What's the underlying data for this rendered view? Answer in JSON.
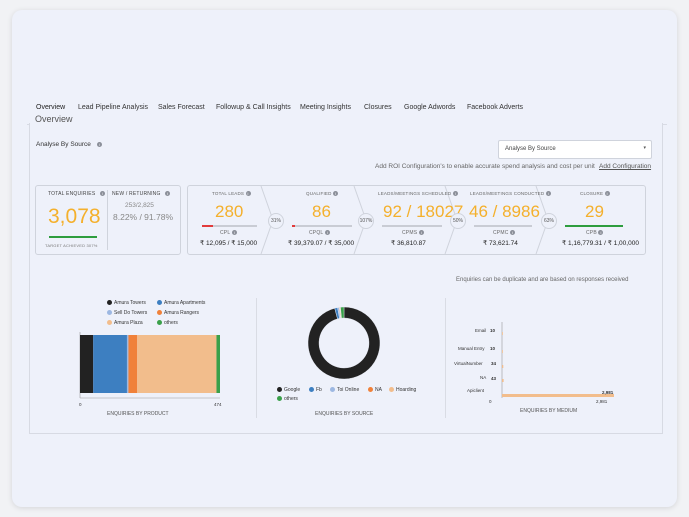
{
  "tabs": [
    {
      "label": "Overview"
    },
    {
      "label": "Lead Pipeline Analysis"
    },
    {
      "label": "Sales Forecast"
    },
    {
      "label": "Followup & Call Insights"
    },
    {
      "label": "Meeting Insights"
    },
    {
      "label": "Closures"
    },
    {
      "label": "Google Adwords"
    },
    {
      "label": "Facebook Adverts"
    }
  ],
  "section_title": "Overview",
  "analyse_label": "Analyse By Source",
  "select": {
    "value": "Analyse By Source"
  },
  "roi_text": "Add ROI Configuration's to enable accurate spend analysis and cost per unit",
  "roi_link": "Add Configuration",
  "enquiries": {
    "total_label": "TOTAL ENQUIRIES",
    "total_value": "3,078",
    "target_text": "TARGET ACHIEVED 307%",
    "new_returning_label": "NEW / RETURNING",
    "new_returning_value": "253/2,825",
    "new_returning_pct": "8.22% / 91.78%"
  },
  "funnel": [
    {
      "label": "TOTAL LEADS",
      "value": "280",
      "cost_label": "CPL",
      "cost_value": "₹ 12,095 / ₹ 15,000",
      "bar_color": "#e23b3b",
      "progress": 0.2
    },
    {
      "label": "QUALIFIED",
      "value": "86",
      "cost_label": "CPQL",
      "cost_value": "₹ 39,379.07 / ₹ 35,000",
      "bar_color": "#e23b3b",
      "progress": 0.05
    },
    {
      "label": "LEADS/MEETINGS SCHEDULED",
      "value": "92 / 18027",
      "cost_label": "CPMS",
      "cost_value": "₹ 36,810.87",
      "bar_color": "#c9ccd4",
      "progress": 0
    },
    {
      "label": "LEADS/MEETINGS CONDUCTED",
      "value": "46 / 8986",
      "cost_label": "CPMC",
      "cost_value": "₹ 73,621.74",
      "bar_color": "#c9ccd4",
      "progress": 0
    },
    {
      "label": "CLOSURE",
      "value": "29",
      "cost_label": "CPB",
      "cost_value": "₹ 1,16,779.31 / ₹ 1,00,000",
      "bar_color": "#2e9d3e",
      "progress": 1
    }
  ],
  "conversion": [
    "31%",
    "107%",
    "50%",
    "63%"
  ],
  "duplicate_note": "Enquiries can be duplicate and are based on responses received",
  "product_chart": {
    "legend": [
      {
        "name": "Amura Towers",
        "color": "#222222"
      },
      {
        "name": "Amura Apartments",
        "color": "#3d7fc1"
      },
      {
        "name": "Sell Do Towers",
        "color": "#9db8e2"
      },
      {
        "name": "Amura Rangers",
        "color": "#f0813a"
      },
      {
        "name": "Amura Plaza",
        "color": "#f2bd8c"
      },
      {
        "name": "others",
        "color": "#3aa04a"
      }
    ],
    "axis_min": "0",
    "axis_max": "474",
    "title": "ENQUIRIES BY PRODUCT"
  },
  "source_chart": {
    "legend": [
      {
        "name": "Google",
        "color": "#222222"
      },
      {
        "name": "Fb",
        "color": "#3d7fc1"
      },
      {
        "name": "Toi Online",
        "color": "#9db8e2"
      },
      {
        "name": "NA",
        "color": "#f0813a"
      },
      {
        "name": "Hoarding",
        "color": "#f2bd8c"
      },
      {
        "name": "others",
        "color": "#3aa04a"
      }
    ],
    "title": "ENQUIRIES BY SOURCE"
  },
  "medium_chart": {
    "rows": [
      {
        "label": "Email",
        "value": "10"
      },
      {
        "label": "Manual Entry",
        "value": "10"
      },
      {
        "label": "VirtualNumber",
        "value": "34"
      },
      {
        "label": "NA",
        "value": "43"
      },
      {
        "label": "Apiclient",
        "value": "2,981"
      }
    ],
    "axis_min": "0",
    "axis_max": "2,981",
    "title": "ENQUIRIES BY MEDIUM"
  },
  "chart_data": [
    {
      "type": "bar",
      "title": "ENQUIRIES BY PRODUCT",
      "orientation": "horizontal-stacked",
      "series": [
        {
          "name": "Amura Towers",
          "values": [
            45
          ]
        },
        {
          "name": "Amura Apartments",
          "values": [
            115
          ]
        },
        {
          "name": "Sell Do Towers",
          "values": [
            5
          ]
        },
        {
          "name": "Amura Rangers",
          "values": [
            30
          ]
        },
        {
          "name": "Amura Plaza",
          "values": [
            270
          ]
        },
        {
          "name": "others",
          "values": [
            12
          ]
        }
      ],
      "xlim": [
        0,
        474
      ]
    },
    {
      "type": "pie",
      "title": "ENQUIRIES BY SOURCE",
      "donut": true,
      "series": [
        {
          "name": "Google",
          "values": [
            2950
          ]
        },
        {
          "name": "Fb",
          "values": [
            40
          ]
        },
        {
          "name": "Toi Online",
          "values": [
            20
          ]
        },
        {
          "name": "NA",
          "values": [
            10
          ]
        },
        {
          "name": "Hoarding",
          "values": [
            10
          ]
        },
        {
          "name": "others",
          "values": [
            48
          ]
        }
      ]
    },
    {
      "type": "bar",
      "title": "ENQUIRIES BY MEDIUM",
      "orientation": "horizontal",
      "categories": [
        "Email",
        "Manual Entry",
        "VirtualNumber",
        "NA",
        "Apiclient"
      ],
      "values": [
        10,
        10,
        34,
        43,
        2981
      ],
      "xlim": [
        0,
        2981
      ]
    }
  ]
}
